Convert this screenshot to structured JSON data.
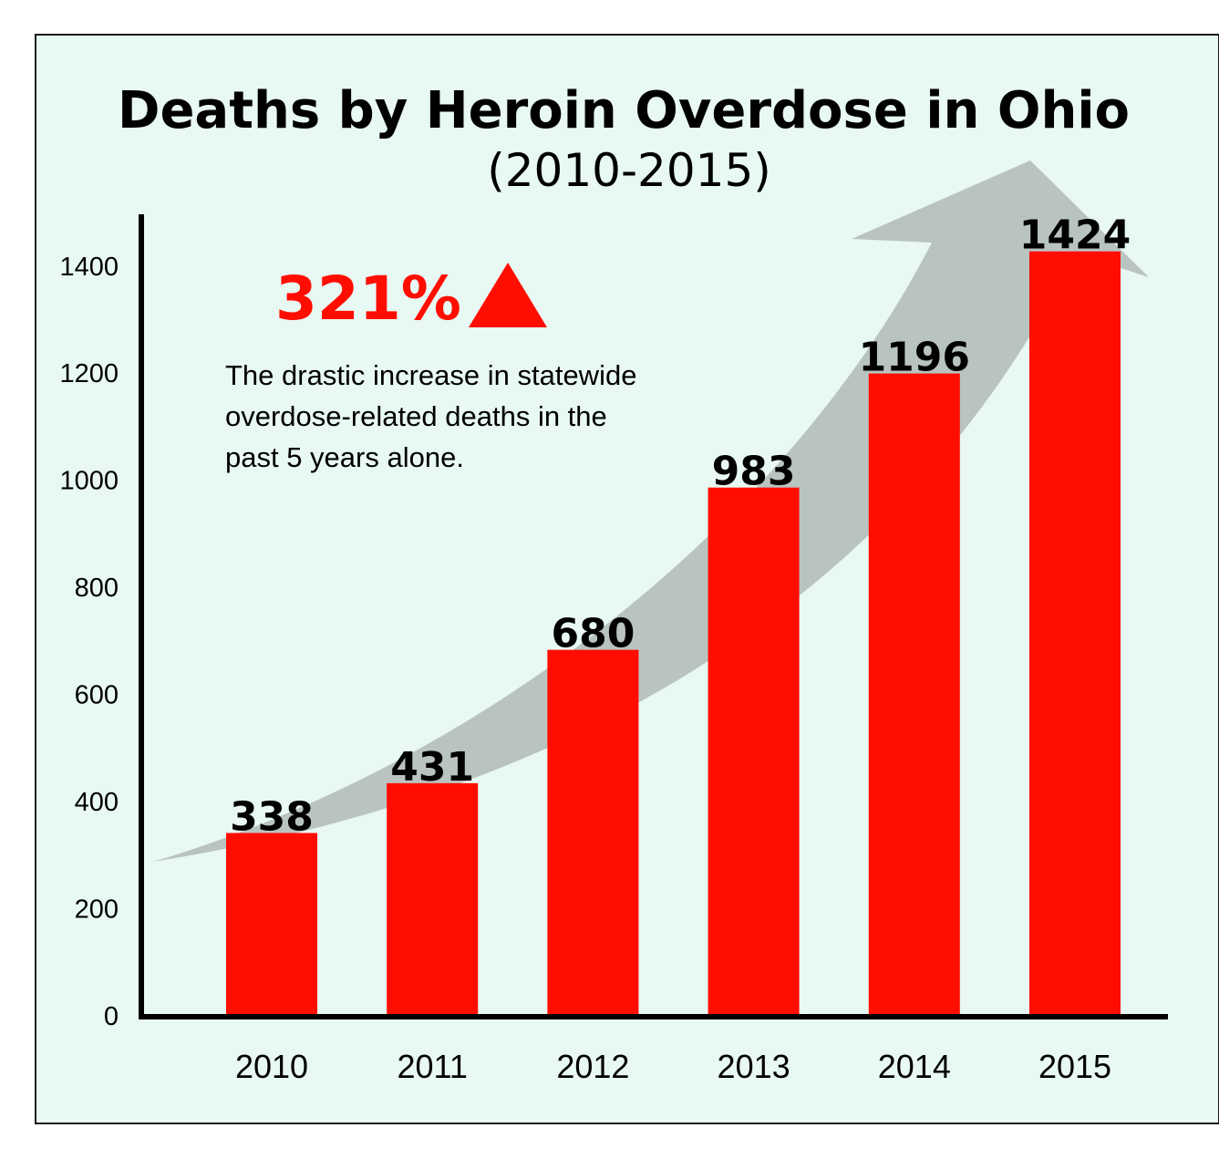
{
  "chart_data": {
    "type": "bar",
    "title": "Deaths by Heroin Overdose in Ohio",
    "subtitle": "(2010-2015)",
    "categories": [
      "2010",
      "2011",
      "2012",
      "2013",
      "2014",
      "2015"
    ],
    "values": [
      338,
      431,
      680,
      983,
      1196,
      1424
    ],
    "yticks": [
      0,
      200,
      400,
      600,
      800,
      1000,
      1200,
      1400
    ],
    "ylim": [
      0,
      1500
    ],
    "xlabel": "",
    "ylabel": "",
    "grid": false,
    "annotation": {
      "headline": "321%",
      "lines": [
        "The drastic increase in statewide",
        "overdose-related deaths in the",
        "past 5 years alone."
      ]
    },
    "colors": {
      "bar": "#ff0d00",
      "headline": "#ff0d00",
      "arrow": "#b9c3c0",
      "background": "#e8f8f2",
      "axis": "#000000"
    }
  }
}
